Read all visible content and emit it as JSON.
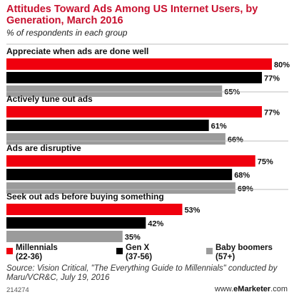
{
  "title": "Attitudes Toward Ads Among US Internet Users, by Generation, March 2016",
  "subtitle": "% of respondents in each group",
  "colors": {
    "accent": "#c8102e",
    "millennials": "#f0000e",
    "genx": "#000000",
    "boomers": "#9b9b9b"
  },
  "chart_data": {
    "type": "bar",
    "orientation": "horizontal",
    "categories": [
      "Appreciate when ads are done well",
      "Actively tune out ads",
      "Ads are disruptive",
      "Seek out ads before buying something"
    ],
    "series": [
      {
        "name": "Millennials (22-36)",
        "values": [
          80,
          77,
          75,
          53
        ]
      },
      {
        "name": "Gen X (37-56)",
        "values": [
          77,
          61,
          68,
          42
        ]
      },
      {
        "name": "Baby boomers (57+)",
        "values": [
          65,
          66,
          69,
          35
        ]
      }
    ],
    "value_suffix": "%",
    "xlim": [
      0,
      80
    ],
    "grid": false,
    "legend_position": "bottom"
  },
  "legend": [
    {
      "line1": "Millennials",
      "line2": "(22-36)"
    },
    {
      "line1": "Gen X",
      "line2": "(37-56)"
    },
    {
      "line1": "Baby boomers",
      "line2": "(57+)"
    }
  ],
  "source": "Source: Vision Critical, \"The Everything Guide to Millennials\" conducted by Maru/VCR&C, July 19, 2016",
  "chart_id": "214274",
  "brand": {
    "prefix": "www.",
    "name": "eMarketer",
    "suffix": ".com"
  }
}
